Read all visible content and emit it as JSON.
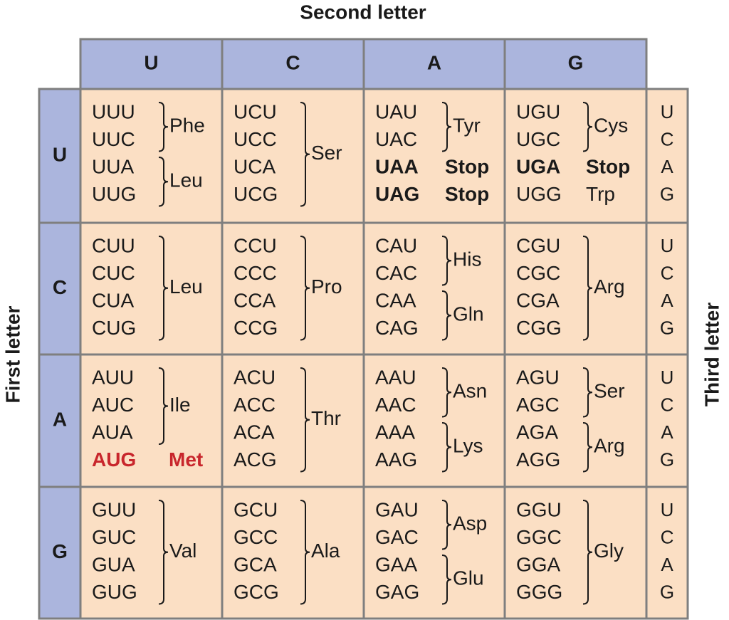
{
  "labels": {
    "second": "Second letter",
    "first": "First letter",
    "third": "Third letter"
  },
  "columns": [
    "U",
    "C",
    "A",
    "G"
  ],
  "rows": [
    {
      "letter": "U",
      "third": [
        "U",
        "C",
        "A",
        "G"
      ],
      "cells": [
        [
          {
            "codons": [
              "UUU",
              "UUC"
            ],
            "amino": "Phe"
          },
          {
            "codons": [
              "UUA",
              "UUG"
            ],
            "amino": "Leu"
          }
        ],
        [
          {
            "codons": [
              "UCU",
              "UCC",
              "UCA",
              "UCG"
            ],
            "amino": "Ser"
          }
        ],
        [
          {
            "codons": [
              "UAU",
              "UAC"
            ],
            "amino": "Tyr"
          },
          {
            "codons": [
              "UAA"
            ],
            "amino": "Stop",
            "bold": true
          },
          {
            "codons": [
              "UAG"
            ],
            "amino": "Stop",
            "bold": true
          }
        ],
        [
          {
            "codons": [
              "UGU",
              "UGC"
            ],
            "amino": "Cys"
          },
          {
            "codons": [
              "UGA"
            ],
            "amino": "Stop",
            "bold": true
          },
          {
            "codons": [
              "UGG"
            ],
            "amino": "Trp"
          }
        ]
      ]
    },
    {
      "letter": "C",
      "third": [
        "U",
        "C",
        "A",
        "G"
      ],
      "cells": [
        [
          {
            "codons": [
              "CUU",
              "CUC",
              "CUA",
              "CUG"
            ],
            "amino": "Leu"
          }
        ],
        [
          {
            "codons": [
              "CCU",
              "CCC",
              "CCA",
              "CCG"
            ],
            "amino": "Pro"
          }
        ],
        [
          {
            "codons": [
              "CAU",
              "CAC"
            ],
            "amino": "His"
          },
          {
            "codons": [
              "CAA",
              "CAG"
            ],
            "amino": "Gln"
          }
        ],
        [
          {
            "codons": [
              "CGU",
              "CGC",
              "CGA",
              "CGG"
            ],
            "amino": "Arg"
          }
        ]
      ]
    },
    {
      "letter": "A",
      "third": [
        "U",
        "C",
        "A",
        "G"
      ],
      "cells": [
        [
          {
            "codons": [
              "AUU",
              "AUC",
              "AUA"
            ],
            "amino": "Ile"
          },
          {
            "codons": [
              "AUG"
            ],
            "amino": "Met",
            "bold": true,
            "color": "#c8262c"
          }
        ],
        [
          {
            "codons": [
              "ACU",
              "ACC",
              "ACA",
              "ACG"
            ],
            "amino": "Thr"
          }
        ],
        [
          {
            "codons": [
              "AAU",
              "AAC"
            ],
            "amino": "Asn"
          },
          {
            "codons": [
              "AAA",
              "AAG"
            ],
            "amino": "Lys"
          }
        ],
        [
          {
            "codons": [
              "AGU",
              "AGC"
            ],
            "amino": "Ser"
          },
          {
            "codons": [
              "AGA",
              "AGG"
            ],
            "amino": "Arg"
          }
        ]
      ]
    },
    {
      "letter": "G",
      "third": [
        "U",
        "C",
        "A",
        "G"
      ],
      "cells": [
        [
          {
            "codons": [
              "GUU",
              "GUC",
              "GUA",
              "GUG"
            ],
            "amino": "Val"
          }
        ],
        [
          {
            "codons": [
              "GCU",
              "GCC",
              "GCA",
              "GCG"
            ],
            "amino": "Ala"
          }
        ],
        [
          {
            "codons": [
              "GAU",
              "GAC"
            ],
            "amino": "Asp"
          },
          {
            "codons": [
              "GAA",
              "GAG"
            ],
            "amino": "Glu"
          }
        ],
        [
          {
            "codons": [
              "GGU",
              "GGC",
              "GGA",
              "GGG"
            ],
            "amino": "Gly"
          }
        ]
      ]
    }
  ]
}
